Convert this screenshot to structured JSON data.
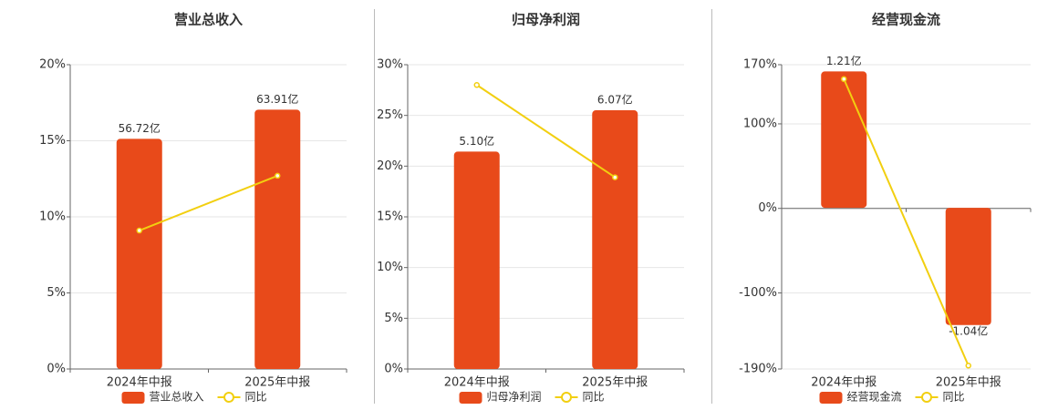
{
  "chart_data": [
    {
      "type": "bar",
      "title": "营业总收入",
      "categories": [
        "2024年中报",
        "2025年中报"
      ],
      "series": [
        {
          "name": "营业总收入",
          "type": "bar",
          "axis": "y2",
          "color": "#e84a1a",
          "values": [
            56.72,
            63.91
          ],
          "value_labels": [
            "56.72亿",
            "63.91亿"
          ]
        },
        {
          "name": "同比",
          "type": "line",
          "color": "#f2cf10",
          "values": [
            9.1,
            12.7
          ]
        }
      ],
      "ylim": [
        0,
        20
      ],
      "yticks": [
        {
          "value": 0,
          "label": "0%"
        },
        {
          "value": 5,
          "label": "5%"
        },
        {
          "value": 10,
          "label": "10%"
        },
        {
          "value": 15,
          "label": "15%"
        },
        {
          "value": 20,
          "label": "20%"
        }
      ],
      "y2lim": [
        0,
        75
      ],
      "grid": true,
      "legend": "bottom"
    },
    {
      "type": "bar",
      "title": "归母净利润",
      "categories": [
        "2024年中报",
        "2025年中报"
      ],
      "series": [
        {
          "name": "归母净利润",
          "type": "bar",
          "axis": "y2",
          "color": "#e84a1a",
          "values": [
            5.1,
            6.07
          ],
          "value_labels": [
            "5.10亿",
            "6.07亿"
          ]
        },
        {
          "name": "同比",
          "type": "line",
          "color": "#f2cf10",
          "values": [
            28.0,
            18.9
          ]
        }
      ],
      "ylim": [
        0,
        30
      ],
      "yticks": [
        {
          "value": 0,
          "label": "0%"
        },
        {
          "value": 5,
          "label": "5%"
        },
        {
          "value": 10,
          "label": "10%"
        },
        {
          "value": 15,
          "label": "15%"
        },
        {
          "value": 20,
          "label": "20%"
        },
        {
          "value": 25,
          "label": "25%"
        },
        {
          "value": 30,
          "label": "30%"
        }
      ],
      "y2lim": [
        0,
        7.14
      ],
      "grid": true,
      "legend": "bottom"
    },
    {
      "type": "bar",
      "title": "经营现金流",
      "categories": [
        "2024年中报",
        "2025年中报"
      ],
      "series": [
        {
          "name": "经营现金流",
          "type": "bar",
          "axis": "y2",
          "color": "#e84a1a",
          "values": [
            1.21,
            -1.04
          ],
          "value_labels": [
            "1.21亿",
            "-1.04亿"
          ]
        },
        {
          "name": "同比",
          "type": "line",
          "color": "#f2cf10",
          "values": [
            153,
            -186
          ]
        }
      ],
      "ylim": [
        -190,
        170
      ],
      "yticks": [
        {
          "value": -190,
          "label": "-190%"
        },
        {
          "value": -100,
          "label": "-100%"
        },
        {
          "value": 0,
          "label": "0%"
        },
        {
          "value": 100,
          "label": "100%"
        },
        {
          "value": 170,
          "label": "170%"
        }
      ],
      "y2lim": [
        -1.43,
        1.27
      ],
      "grid": true,
      "legend": "bottom"
    }
  ]
}
